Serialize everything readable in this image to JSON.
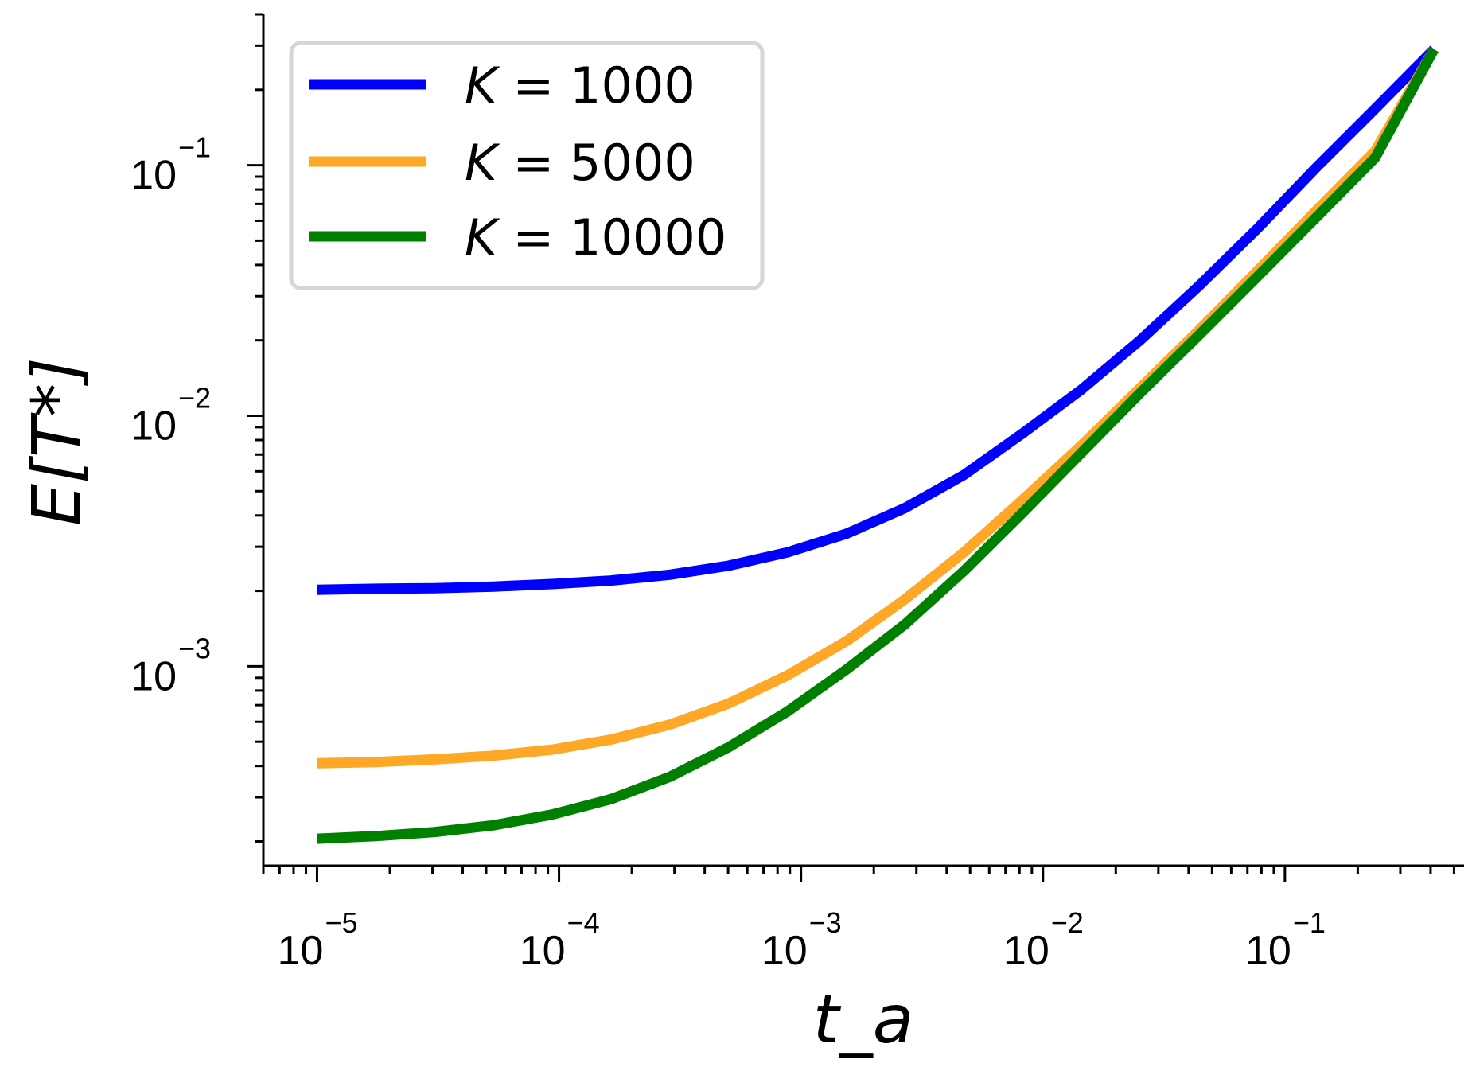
{
  "chart_data": {
    "type": "line",
    "title": "",
    "xlabel": "t_a",
    "ylabel": "E[T*]",
    "xscale": "log",
    "yscale": "log",
    "xlim": [
      6e-06,
      0.55
    ],
    "ylim": [
      0.00016,
      0.4
    ],
    "grid": false,
    "legend_position": "top-left",
    "x_ticks": [
      {
        "base": "10",
        "exp": "−5",
        "value": 1e-05
      },
      {
        "base": "10",
        "exp": "−4",
        "value": 0.0001
      },
      {
        "base": "10",
        "exp": "−3",
        "value": 0.001
      },
      {
        "base": "10",
        "exp": "−2",
        "value": 0.01
      },
      {
        "base": "10",
        "exp": "−1",
        "value": 0.1
      }
    ],
    "y_ticks": [
      {
        "base": "10",
        "exp": "−3",
        "value": 0.001
      },
      {
        "base": "10",
        "exp": "−2",
        "value": 0.01
      },
      {
        "base": "10",
        "exp": "−1",
        "value": 0.1
      }
    ],
    "x": [
      1e-05,
      1.75e-05,
      3.06e-05,
      5.36e-05,
      9.37e-05,
      0.000164,
      0.000287,
      0.000502,
      0.000879,
      0.00154,
      0.00269,
      0.00471,
      0.00824,
      0.0144,
      0.0252,
      0.0442,
      0.0772,
      0.135,
      0.236,
      0.413
    ],
    "series": [
      {
        "name": "K = 1000",
        "legend_label": "K",
        "legend_value": "1000",
        "color": "#0000ff",
        "values": [
          0.00202,
          0.00204,
          0.00205,
          0.00208,
          0.00213,
          0.0022,
          0.00232,
          0.00252,
          0.00285,
          0.00338,
          0.00428,
          0.0058,
          0.0085,
          0.0127,
          0.02,
          0.033,
          0.056,
          0.098,
          0.168,
          0.29
        ]
      },
      {
        "name": "K = 5000",
        "legend_label": "K",
        "legend_value": "5000",
        "color": "#ffa726",
        "values": [
          0.00041,
          0.000415,
          0.000425,
          0.00044,
          0.000465,
          0.00051,
          0.000585,
          0.00071,
          0.00092,
          0.00126,
          0.00185,
          0.00285,
          0.00462,
          0.0076,
          0.0129,
          0.022,
          0.038,
          0.066,
          0.114,
          0.29
        ]
      },
      {
        "name": "K = 10000",
        "legend_label": "K",
        "legend_value": "10000",
        "color": "#008000",
        "values": [
          0.000205,
          0.00021,
          0.000218,
          0.000232,
          0.000256,
          0.000295,
          0.000362,
          0.000475,
          0.00066,
          0.00097,
          0.00147,
          0.0024,
          0.0041,
          0.0071,
          0.0123,
          0.021,
          0.036,
          0.062,
          0.107,
          0.29
        ]
      }
    ]
  }
}
